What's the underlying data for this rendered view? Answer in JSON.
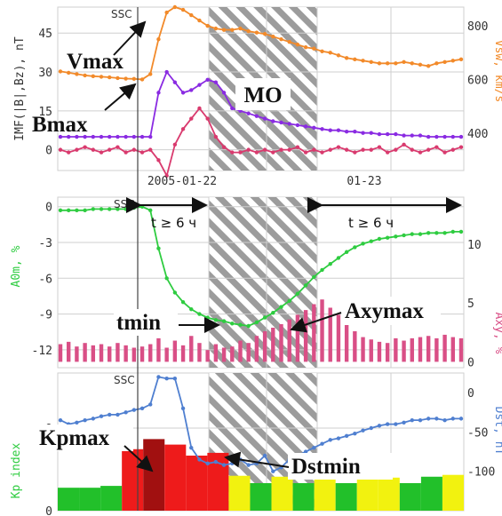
{
  "colors": {
    "vsw": "#f28a2a",
    "b": "#8a2be2",
    "bz": "#d93a6e",
    "a0m": "#2ecc40",
    "axy": "#d94f86",
    "dst": "#4f7fd0",
    "kp_green": "#22c02a",
    "kp_yellow": "#f2f20f",
    "kp_red": "#ee1b1b",
    "kp_darkred": "#a11010",
    "grid": "#cfcfcf",
    "hatch": "#8a8a8a"
  },
  "annotations": {
    "ssc1": "SSC",
    "ssc2": "SSC",
    "ssc3": "SSC",
    "vmax": "Vmax",
    "bmax": "Bmax",
    "mo": "MO",
    "tmin": "tmin",
    "axymax": "Axymax",
    "kpmax": "Kpmax",
    "dstmin": "Dstmin",
    "t_before": "t ≥ 6 ч",
    "t_after": "t ≥ 6 ч"
  },
  "chart_data": [
    {
      "type": "line",
      "panel": "top",
      "ylabel": "IMF(|B|,Bz), nT",
      "ylabel_right": "Vsw, km/s",
      "x_ticks": [
        "2005-01-22",
        "01-23"
      ],
      "yticks_left": [
        0,
        15,
        30,
        45
      ],
      "yticks_right": [
        400,
        600,
        800
      ],
      "ylim_left": [
        -8,
        55
      ],
      "ylim_right": [
        260,
        870
      ],
      "series": [
        {
          "name": "|B|",
          "axis": "left",
          "color": "b",
          "y": [
            5,
            5,
            5,
            5,
            5,
            5,
            5,
            5,
            5,
            5,
            5,
            5,
            22,
            30,
            26,
            22,
            23,
            25,
            27,
            26,
            22,
            16,
            15,
            14,
            13,
            12,
            11,
            10.5,
            10,
            9.5,
            9,
            8.5,
            8,
            7.5,
            7.5,
            7,
            7,
            6.5,
            6.5,
            6,
            6,
            6,
            5.5,
            5.5,
            5.5,
            5,
            5,
            5,
            5,
            5
          ]
        },
        {
          "name": "Bz",
          "axis": "left",
          "color": "bz",
          "y": [
            0,
            -1,
            0,
            1,
            0,
            -1,
            0,
            1,
            -1,
            0,
            -1,
            0,
            -4,
            -10,
            2,
            8,
            12,
            16,
            12,
            5,
            1,
            -1,
            -1,
            0,
            -1,
            0,
            -1,
            0,
            0,
            1,
            -1,
            0,
            -1,
            0,
            1,
            0,
            -1,
            0,
            0,
            1,
            -1,
            0,
            2,
            0,
            -1,
            0,
            1,
            -1,
            0,
            1
          ]
        },
        {
          "name": "Vsw",
          "axis": "right",
          "color": "vsw",
          "y": [
            630,
            625,
            620,
            615,
            612,
            610,
            608,
            605,
            603,
            602,
            600,
            620,
            750,
            850,
            870,
            860,
            840,
            820,
            800,
            790,
            785,
            785,
            790,
            780,
            775,
            770,
            760,
            750,
            740,
            730,
            720,
            715,
            705,
            700,
            690,
            680,
            675,
            670,
            665,
            660,
            660,
            660,
            665,
            660,
            655,
            650,
            660,
            665,
            670,
            675
          ]
        }
      ]
    },
    {
      "type": "line",
      "panel": "middle",
      "ylabel": "A0m, %",
      "ylabel_right": "Axy, %",
      "yticks_left": [
        0,
        -3,
        -6,
        -9,
        -12
      ],
      "yticks_right": [
        0,
        5,
        10
      ],
      "ylim_left": [
        -13.5,
        0.8
      ],
      "ylim_right": [
        -0.5,
        14
      ],
      "series": [
        {
          "name": "A0m",
          "axis": "left",
          "color": "a0m",
          "y": [
            -0.3,
            -0.3,
            -0.3,
            -0.3,
            -0.2,
            -0.2,
            -0.2,
            -0.2,
            -0.2,
            -0.1,
            0,
            -0.3,
            -3.5,
            -6,
            -7.2,
            -8,
            -8.6,
            -9,
            -9.3,
            -9.5,
            -9.6,
            -9.8,
            -9.9,
            -10,
            -9.7,
            -9.3,
            -8.9,
            -8.4,
            -7.9,
            -7.3,
            -6.6,
            -5.9,
            -5.3,
            -4.8,
            -4.3,
            -3.8,
            -3.4,
            -3.1,
            -2.9,
            -2.7,
            -2.6,
            -2.5,
            -2.4,
            -2.3,
            -2.3,
            -2.2,
            -2.2,
            -2.2,
            -2.1,
            -2.1
          ]
        },
        {
          "name": "Axy",
          "axis": "right",
          "color": "axy",
          "type": "bar",
          "y": [
            1.5,
            1.7,
            1.3,
            1.6,
            1.4,
            1.5,
            1.3,
            1.6,
            1.4,
            1.2,
            1.3,
            1.5,
            2.0,
            1.2,
            1.8,
            1.4,
            2.2,
            1.6,
            1.0,
            1.5,
            1.2,
            1.3,
            1.8,
            1.6,
            2.2,
            2.6,
            2.9,
            3.2,
            3.6,
            4.0,
            4.4,
            4.9,
            5.3,
            4.6,
            4.0,
            3.3,
            2.6,
            2.1,
            1.9,
            1.7,
            1.6,
            2.0,
            1.8,
            2.0,
            2.1,
            2.2,
            2.0,
            2.3,
            2.1,
            2.0
          ]
        }
      ]
    },
    {
      "type": "bar",
      "panel": "bottom",
      "ylabel": "Kp index",
      "ylabel_right": "Dst, nT",
      "yticks_left": [
        0,
        9
      ],
      "yticks_right": [
        0,
        -50,
        -100
      ],
      "ylim_left": [
        0,
        15
      ],
      "ylim_right": [
        -150,
        25
      ],
      "series": [
        {
          "name": "Kp",
          "axis": "left",
          "type": "bar",
          "values": [
            2.5,
            2.5,
            2.7,
            6.7,
            7.8,
            7.2,
            6.0,
            6.3,
            3.8,
            3.0,
            3.7,
            3.0,
            4.0,
            3.0,
            3.7,
            3.6,
            3.0,
            3.7,
            3.9
          ],
          "colors": [
            "kp_green",
            "kp_green",
            "kp_green",
            "kp_red",
            "kp_darkred",
            "kp_red",
            "kp_red",
            "kp_red",
            "kp_yellow",
            "kp_green",
            "kp_yellow",
            "kp_green",
            "kp_yellow",
            "kp_green",
            "kp_yellow",
            "kp_yellow",
            "kp_green",
            "kp_green",
            "kp_yellow"
          ]
        },
        {
          "name": "Dst",
          "axis": "right",
          "color": "dst",
          "type": "line",
          "y": [
            -35,
            -40,
            -38,
            -35,
            -33,
            -30,
            -28,
            -28,
            -25,
            -22,
            -20,
            -15,
            20,
            18,
            18,
            -20,
            -70,
            -85,
            -90,
            -88,
            -92,
            -90,
            -85,
            -92,
            -90,
            -80,
            -100,
            -95,
            -85,
            -80,
            -75,
            -70,
            -65,
            -60,
            -58,
            -55,
            -52,
            -48,
            -45,
            -42,
            -40,
            -40,
            -38,
            -35,
            -35,
            -33,
            -33,
            -35,
            -33,
            -33
          ]
        }
      ]
    }
  ]
}
